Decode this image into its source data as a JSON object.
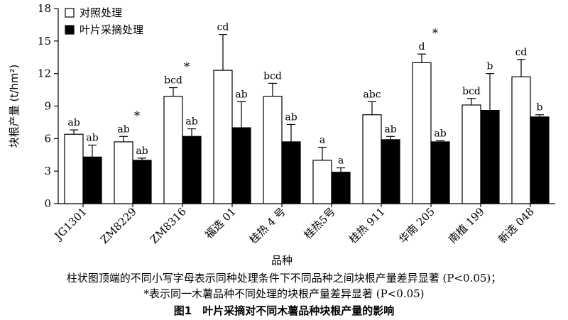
{
  "chart_data": {
    "type": "bar",
    "title": "",
    "xlabel": "品种",
    "ylabel": "块根产量 (t/hm²)",
    "ylim": [
      0,
      18
    ],
    "yticks": [
      "0",
      "3",
      "6",
      "9",
      "12",
      "15",
      "18"
    ],
    "grid": false,
    "legend_position": "top-left",
    "categories": [
      "JG1301",
      "ZM8229",
      "ZM8316",
      "福选 01",
      "桂热 4 号",
      "桂热5号",
      "桂热 911",
      "华南 205",
      "南植 199",
      "新选 048"
    ],
    "series": [
      {
        "name": "对照处理",
        "color": "#ffffff",
        "values": [
          6.4,
          5.7,
          9.9,
          12.3,
          9.9,
          4.0,
          8.2,
          13.0,
          9.1,
          11.7
        ],
        "error": [
          0.4,
          0.5,
          0.8,
          3.3,
          1.2,
          1.2,
          1.2,
          0.8,
          0.6,
          1.6
        ],
        "labels": [
          "ab",
          "ab",
          "bcd",
          "cd",
          "bcd",
          "a",
          "abc",
          "d",
          "bcd",
          "cd"
        ]
      },
      {
        "name": "叶片采摘处理",
        "color": "#000000",
        "values": [
          4.3,
          4.0,
          6.2,
          7.0,
          5.7,
          2.9,
          5.9,
          5.7,
          8.6,
          8.0
        ],
        "error": [
          1.1,
          0.2,
          0.7,
          2.4,
          1.6,
          0.4,
          0.3,
          0.1,
          3.4,
          0.2
        ],
        "labels": [
          "ab",
          "ab",
          "ab",
          "ab",
          "ab",
          "a",
          "ab",
          "ab",
          "b",
          "b"
        ]
      }
    ],
    "significance_markers": [
      "",
      "*",
      "*",
      "",
      "",
      "",
      "",
      "*",
      "",
      ""
    ]
  },
  "notes": {
    "line1": "柱状图顶端的不同小写字母表示同种处理条件下不同品种之间块根产量差异显著 (P<0.05)；",
    "line2": "*表示同一木薯品种不同处理的块根产量差异显著 (P<0.05)"
  },
  "caption": "图1　叶片采摘对不同木薯品种块根产量的影响"
}
